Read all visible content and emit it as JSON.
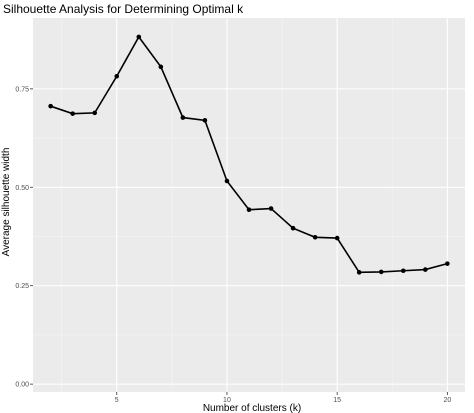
{
  "chart_data": {
    "type": "line",
    "title": "Silhouette Analysis for Determining Optimal k",
    "xlabel": "Number of clusters (k)",
    "ylabel": "Average silhouette width",
    "x": [
      2,
      3,
      4,
      5,
      6,
      7,
      8,
      9,
      10,
      11,
      12,
      13,
      14,
      15,
      16,
      17,
      18,
      19,
      20
    ],
    "series": [
      {
        "values": [
          0.706,
          0.687,
          0.689,
          0.782,
          0.882,
          0.806,
          0.677,
          0.67,
          0.516,
          0.443,
          0.446,
          0.396,
          0.373,
          0.371,
          0.284,
          0.285,
          0.288,
          0.291,
          0.306
        ]
      }
    ],
    "xlim": [
      1.2,
      20.8
    ],
    "ylim": [
      -0.02,
      0.93
    ],
    "xticks": [
      5,
      10,
      15,
      20
    ],
    "xtick_labels": [
      "5",
      "10",
      "15",
      "20"
    ],
    "yticks": [
      0,
      0.25,
      0.5,
      0.75
    ],
    "ytick_labels": [
      "0.00",
      "0.25",
      "0.50",
      "0.75"
    ],
    "grid": true,
    "legend": "none",
    "colors": {
      "panel_background": "#ebebeb",
      "grid_major": "#ffffff",
      "grid_minor": "#f5f5f5",
      "line": "#000000",
      "point": "#000000",
      "tick_text": "#4d4d4d"
    }
  }
}
